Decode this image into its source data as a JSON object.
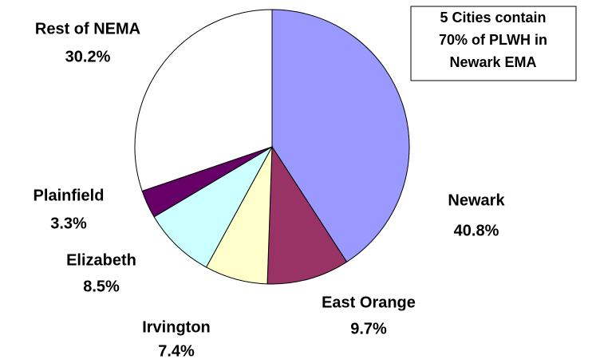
{
  "chart_data": {
    "type": "pie",
    "categories": [
      "Newark",
      "East Orange",
      "Irvington",
      "Elizabeth",
      "Plainfield",
      "Rest of NEMA"
    ],
    "values": [
      40.8,
      9.7,
      7.4,
      8.5,
      3.3,
      30.2
    ],
    "value_labels": [
      "40.8%",
      "9.7%",
      "7.4%",
      "8.5%",
      "3.3%",
      "30.2%"
    ],
    "colors": [
      "#9999ff",
      "#993366",
      "#ffffcc",
      "#ccffff",
      "#660066",
      "#ffffff"
    ],
    "annotation": [
      "5 Cities contain",
      "70% of PLWH in",
      "Newark EMA"
    ]
  }
}
